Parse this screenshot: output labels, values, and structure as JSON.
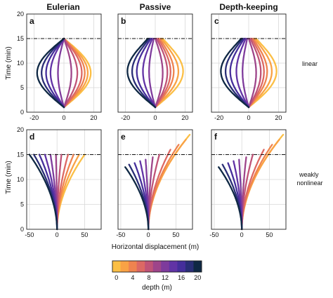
{
  "colors": {
    "depth_ramp": [
      "#fbbf45",
      "#f99f45",
      "#ec7c52",
      "#d5606b",
      "#b04b7f",
      "#8b3f95",
      "#6a35a6",
      "#4b2ea3",
      "#2c2f7c",
      "#0f2844"
    ]
  },
  "chart_data": {
    "type": "line",
    "layout": "2x3 panel grid with shared colorbar",
    "columns": [
      "Eulerian",
      "Passive",
      "Depth-keeping"
    ],
    "rows": [
      "linear",
      "weakly\nnonlinear"
    ],
    "panel_labels": [
      "a",
      "b",
      "c",
      "d",
      "e",
      "f"
    ],
    "ylabel": "Time (min)",
    "xlabel": "Horizontal displacement (m)",
    "ylim": [
      0,
      20
    ],
    "yticks": [
      0,
      5,
      10,
      15,
      20
    ],
    "xlim_linear": [
      -25,
      25
    ],
    "xticks_linear": [
      -20,
      0,
      20
    ],
    "xlim_nonlinear": [
      -55,
      80
    ],
    "xticks_nonlinear": [
      -50,
      0,
      50
    ],
    "reference_line_time": 15,
    "grid": true,
    "depths": [
      0,
      2,
      4,
      6,
      8,
      10,
      12,
      14,
      16,
      18,
      20
    ],
    "panels": [
      {
        "label": "a",
        "amplitude": [
          18.0,
          16.0,
          14.0,
          12.0,
          9.0,
          5.0,
          -4.0,
          -9.0,
          -12.0,
          -15.0,
          -18.0
        ]
      },
      {
        "label": "b",
        "amplitude": [
          18.0,
          15.0,
          12.0,
          10.0,
          8.0,
          5.0,
          -4.0,
          -8.0,
          -12.0,
          -15.0,
          -18.0
        ],
        "end_x_at_15min": [
          5.0,
          4.0,
          3.0,
          2.0,
          1.0,
          0.0,
          -1.0,
          -2.0,
          -3.0,
          -4.0,
          -5.0
        ]
      },
      {
        "label": "c",
        "amplitude": [
          18.0,
          15.0,
          12.0,
          10.0,
          8.0,
          5.0,
          -4.0,
          -8.0,
          -12.0,
          -15.0,
          -18.0
        ],
        "end_x_at_15min": [
          5.0,
          4.0,
          3.0,
          2.0,
          1.0,
          0.0,
          -1.0,
          -2.0,
          -3.0,
          -4.0,
          -5.0
        ]
      },
      {
        "label": "d",
        "x_at_15min": [
          50.0,
          40.0,
          30.0,
          20.0,
          8.0,
          -2.0,
          -12.0,
          -22.0,
          -32.0,
          -42.0,
          -50.0
        ]
      },
      {
        "label": "e",
        "x_at_end": [
          75.0,
          68.0,
          55.0,
          40.0,
          20.0,
          8.0,
          -5.0,
          -15.0,
          -25.0,
          -35.0,
          -42.0
        ],
        "t_end": [
          19.0,
          18.0,
          17.0,
          16.0,
          15.0,
          14.5,
          14.0,
          13.7,
          13.3,
          13.0,
          12.5
        ]
      },
      {
        "label": "f",
        "x_at_end": [
          75.0,
          68.0,
          55.0,
          40.0,
          20.0,
          8.0,
          -5.0,
          -15.0,
          -25.0,
          -35.0,
          -42.0
        ],
        "t_end": [
          19.0,
          18.0,
          17.0,
          16.0,
          15.0,
          14.5,
          14.0,
          13.7,
          13.3,
          13.0,
          12.5
        ]
      }
    ],
    "colorbar": {
      "label": "depth (m)",
      "range": [
        0,
        20
      ],
      "ticks": [
        0,
        4,
        8,
        12,
        16,
        20
      ]
    }
  }
}
